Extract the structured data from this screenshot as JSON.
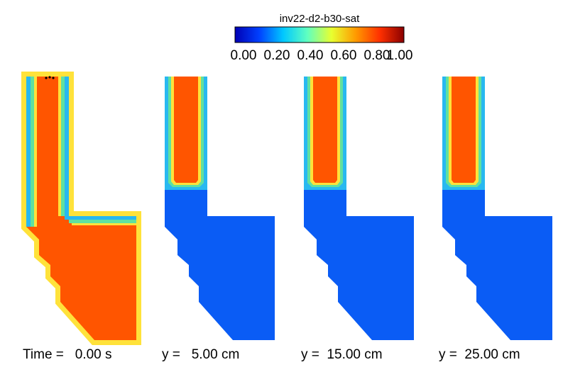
{
  "chart_data": {
    "type": "heatmap",
    "title": "inv22-d2-b30-sat",
    "colorbar": {
      "min": 0.0,
      "max": 1.0,
      "tick_labels": [
        "0.00",
        "0.20",
        "0.40",
        "0.60",
        "0.80",
        "1.00"
      ],
      "colormap": [
        "#0000b4",
        "#0040ff",
        "#00c8ff",
        "#60ffc0",
        "#e8ff30",
        "#ff9a00",
        "#ff3000",
        "#8a0000"
      ]
    },
    "panels": [
      {
        "caption": "Time =   0.00 s",
        "fill_level": 1.0
      },
      {
        "caption": "y =   5.00 cm",
        "fill_level": 0.0
      },
      {
        "caption": "y =  15.00 cm",
        "fill_level": 0.0
      },
      {
        "caption": "y =  25.00 cm",
        "fill_level": 0.0
      }
    ],
    "colors": {
      "saturated": "#ff5500",
      "dry": "#0a5cf5",
      "edge_inner": "#ffe23a",
      "edge_mid": "#60e0a0",
      "edge_outer": "#28b8f0"
    }
  }
}
